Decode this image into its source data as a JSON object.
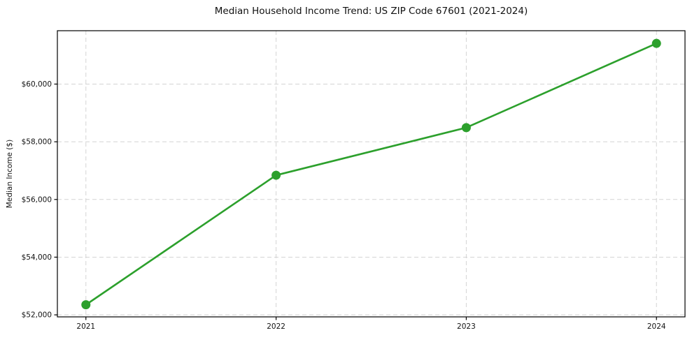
{
  "chart_data": {
    "type": "line",
    "title": "Median Household Income Trend: US ZIP Code 67601 (2021-2024)",
    "xlabel": "",
    "ylabel": "Median Income ($)",
    "x": [
      2021,
      2022,
      2023,
      2024
    ],
    "values": [
      52350,
      56840,
      58490,
      61410
    ],
    "xtick_labels": [
      "2021",
      "2022",
      "2023",
      "2024"
    ],
    "ytick_values": [
      52000,
      54000,
      56000,
      58000,
      60000
    ],
    "ytick_labels": [
      "$52,000",
      "$54,000",
      "$56,000",
      "$58,000",
      "$60,000"
    ],
    "xlim": [
      2020.85,
      2024.15
    ],
    "ylim": [
      51930,
      61850
    ],
    "grid": true,
    "grid_line_style": "dashed",
    "grid_color": "#d4d4d4",
    "line_color": "#2ca02c",
    "marker": "o",
    "legend_position": "none",
    "background_color": "#ffffff",
    "text_color": "#111111",
    "spine_color": "#000000"
  }
}
